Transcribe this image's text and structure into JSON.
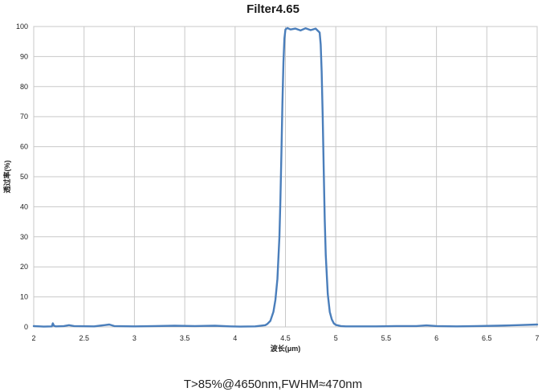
{
  "chart_data": {
    "type": "line",
    "title": "Filter4.65",
    "xlabel": "波长(μm)",
    "ylabel": "透过率(%)",
    "xlim": [
      2,
      7
    ],
    "ylim": [
      0,
      100
    ],
    "x_ticks": [
      "2",
      "2.5",
      "3",
      "3.5",
      "4",
      "4.5",
      "5",
      "5.5",
      "6",
      "6.5",
      "7"
    ],
    "y_ticks": [
      "0",
      "10",
      "20",
      "30",
      "40",
      "50",
      "60",
      "70",
      "80",
      "90",
      "100"
    ],
    "grid": true,
    "line_color": "#4a7ebb",
    "series": [
      {
        "x": [
          2.0,
          2.1,
          2.18,
          2.19,
          2.2,
          2.22,
          2.3,
          2.35,
          2.4,
          2.6,
          2.7,
          2.75,
          2.8,
          3.0,
          3.2,
          3.4,
          3.6,
          3.8,
          3.95,
          4.05,
          4.2,
          4.3,
          4.32,
          4.35,
          4.38,
          4.4,
          4.42,
          4.44,
          4.45,
          4.46,
          4.47,
          4.48,
          4.49,
          4.5,
          4.52,
          4.55,
          4.6,
          4.65,
          4.7,
          4.75,
          4.8,
          4.84,
          4.85,
          4.86,
          4.87,
          4.88,
          4.89,
          4.9,
          4.92,
          4.94,
          4.96,
          4.98,
          5.0,
          5.05,
          5.1,
          5.2,
          5.4,
          5.6,
          5.8,
          5.9,
          6.0,
          6.2,
          6.4,
          6.6,
          6.8,
          7.0
        ],
        "y": [
          0.3,
          0.1,
          0.2,
          1.2,
          0.4,
          0.2,
          0.3,
          0.6,
          0.3,
          0.2,
          0.6,
          0.8,
          0.3,
          0.2,
          0.3,
          0.4,
          0.3,
          0.4,
          0.2,
          0.1,
          0.2,
          0.6,
          1.0,
          2.0,
          5.0,
          9.0,
          16.0,
          30.0,
          42.0,
          58.0,
          74.0,
          88.0,
          96.0,
          99.0,
          99.5,
          99.0,
          99.3,
          98.7,
          99.4,
          98.8,
          99.3,
          98.0,
          94.0,
          85.0,
          70.0,
          52.0,
          36.0,
          24.0,
          11.0,
          5.0,
          2.5,
          1.2,
          0.7,
          0.3,
          0.2,
          0.2,
          0.2,
          0.3,
          0.3,
          0.5,
          0.3,
          0.2,
          0.3,
          0.4,
          0.6,
          0.8
        ]
      }
    ]
  },
  "caption": {
    "text": "T>85%@4650nm,FWHM≈470nm"
  }
}
